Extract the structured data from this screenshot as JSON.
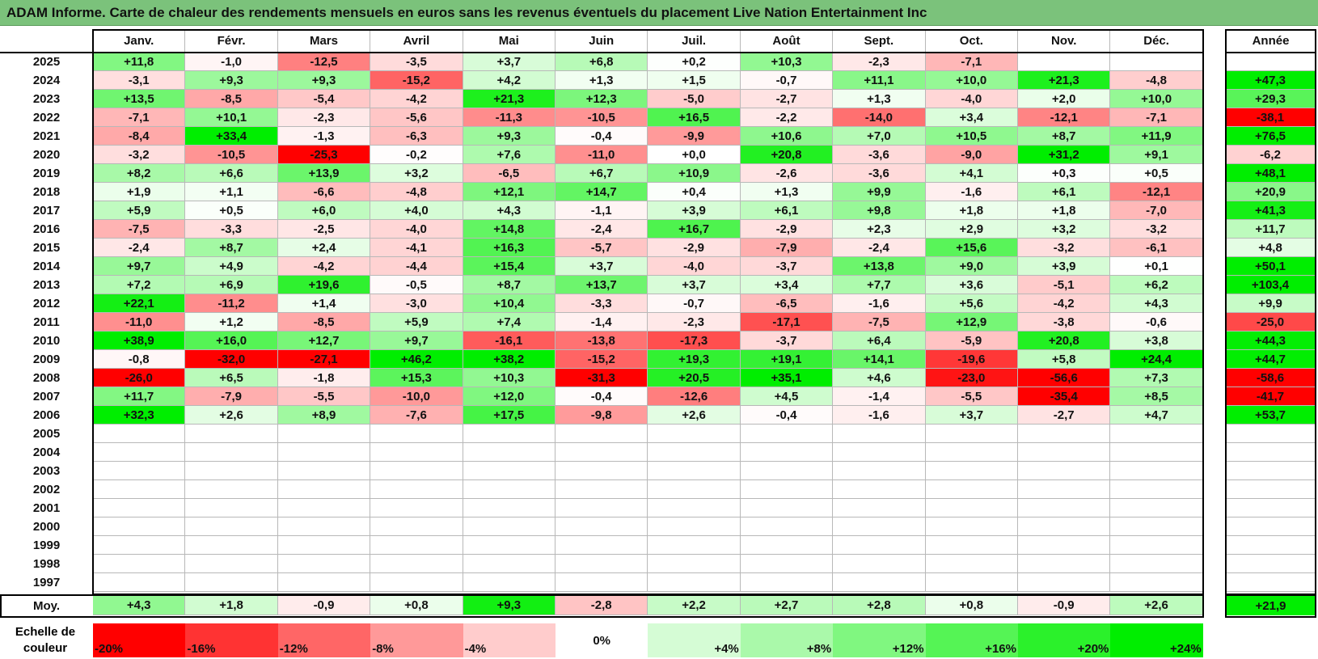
{
  "title": "ADAM Informe. Carte de chaleur des rendements mensuels en euros sans les revenus éventuels du placement Live Nation Entertainment Inc",
  "chart_data": {
    "type": "heatmap",
    "months": [
      "Janv.",
      "Févr.",
      "Mars",
      "Avril",
      "Mai",
      "Juin",
      "Juil.",
      "Août",
      "Sept.",
      "Oct.",
      "Nov.",
      "Déc."
    ],
    "annual_label": "Année",
    "avg_label": "Moy.",
    "rows": [
      {
        "year": "2025",
        "values": [
          "+11,8",
          "-1,0",
          "-12,5",
          "-3,5",
          "+3,7",
          "+6,8",
          "+0,2",
          "+10,3",
          "-2,3",
          "-7,1",
          "",
          ""
        ],
        "annual": ""
      },
      {
        "year": "2024",
        "values": [
          "-3,1",
          "+9,3",
          "+9,3",
          "-15,2",
          "+4,2",
          "+1,3",
          "+1,5",
          "-0,7",
          "+11,1",
          "+10,0",
          "+21,3",
          "-4,8"
        ],
        "annual": "+47,3"
      },
      {
        "year": "2023",
        "values": [
          "+13,5",
          "-8,5",
          "-5,4",
          "-4,2",
          "+21,3",
          "+12,3",
          "-5,0",
          "-2,7",
          "+1,3",
          "-4,0",
          "+2,0",
          "+10,0"
        ],
        "annual": "+29,3"
      },
      {
        "year": "2022",
        "values": [
          "-7,1",
          "+10,1",
          "-2,3",
          "-5,6",
          "-11,3",
          "-10,5",
          "+16,5",
          "-2,2",
          "-14,0",
          "+3,4",
          "-12,1",
          "-7,1"
        ],
        "annual": "-38,1"
      },
      {
        "year": "2021",
        "values": [
          "-8,4",
          "+33,4",
          "-1,3",
          "-6,3",
          "+9,3",
          "-0,4",
          "-9,9",
          "+10,6",
          "+7,0",
          "+10,5",
          "+8,7",
          "+11,9"
        ],
        "annual": "+76,5"
      },
      {
        "year": "2020",
        "values": [
          "-3,2",
          "-10,5",
          "-25,3",
          "-0,2",
          "+7,6",
          "-11,0",
          "+0,0",
          "+20,8",
          "-3,6",
          "-9,0",
          "+31,2",
          "+9,1"
        ],
        "annual": "-6,2"
      },
      {
        "year": "2019",
        "values": [
          "+8,2",
          "+6,6",
          "+13,9",
          "+3,2",
          "-6,5",
          "+6,7",
          "+10,9",
          "-2,6",
          "-3,6",
          "+4,1",
          "+0,3",
          "+0,5"
        ],
        "annual": "+48,1"
      },
      {
        "year": "2018",
        "values": [
          "+1,9",
          "+1,1",
          "-6,6",
          "-4,8",
          "+12,1",
          "+14,7",
          "+0,4",
          "+1,3",
          "+9,9",
          "-1,6",
          "+6,1",
          "-12,1"
        ],
        "annual": "+20,9"
      },
      {
        "year": "2017",
        "values": [
          "+5,9",
          "+0,5",
          "+6,0",
          "+4,0",
          "+4,3",
          "-1,1",
          "+3,9",
          "+6,1",
          "+9,8",
          "+1,8",
          "+1,8",
          "-7,0"
        ],
        "annual": "+41,3"
      },
      {
        "year": "2016",
        "values": [
          "-7,5",
          "-3,3",
          "-2,5",
          "-4,0",
          "+14,8",
          "-2,4",
          "+16,7",
          "-2,9",
          "+2,3",
          "+2,9",
          "+3,2",
          "-3,2"
        ],
        "annual": "+11,7"
      },
      {
        "year": "2015",
        "values": [
          "-2,4",
          "+8,7",
          "+2,4",
          "-4,1",
          "+16,3",
          "-5,7",
          "-2,9",
          "-7,9",
          "-2,4",
          "+15,6",
          "-3,2",
          "-6,1"
        ],
        "annual": "+4,8"
      },
      {
        "year": "2014",
        "values": [
          "+9,7",
          "+4,9",
          "-4,2",
          "-4,4",
          "+15,4",
          "+3,7",
          "-4,0",
          "-3,7",
          "+13,8",
          "+9,0",
          "+3,9",
          "+0,1"
        ],
        "annual": "+50,1"
      },
      {
        "year": "2013",
        "values": [
          "+7,2",
          "+6,9",
          "+19,6",
          "-0,5",
          "+8,7",
          "+13,7",
          "+3,7",
          "+3,4",
          "+7,7",
          "+3,6",
          "-5,1",
          "+6,2"
        ],
        "annual": "+103,4"
      },
      {
        "year": "2012",
        "values": [
          "+22,1",
          "-11,2",
          "+1,4",
          "-3,0",
          "+10,4",
          "-3,3",
          "-0,7",
          "-6,5",
          "-1,6",
          "+5,6",
          "-4,2",
          "+4,3"
        ],
        "annual": "+9,9"
      },
      {
        "year": "2011",
        "values": [
          "-11,0",
          "+1,2",
          "-8,5",
          "+5,9",
          "+7,4",
          "-1,4",
          "-2,3",
          "-17,1",
          "-7,5",
          "+12,9",
          "-3,8",
          "-0,6"
        ],
        "annual": "-25,0"
      },
      {
        "year": "2010",
        "values": [
          "+38,9",
          "+16,0",
          "+12,7",
          "+9,7",
          "-16,1",
          "-13,8",
          "-17,3",
          "-3,7",
          "+6,4",
          "-5,9",
          "+20,8",
          "+3,8"
        ],
        "annual": "+44,3"
      },
      {
        "year": "2009",
        "values": [
          "-0,8",
          "-32,0",
          "-27,1",
          "+46,2",
          "+38,2",
          "-15,2",
          "+19,3",
          "+19,1",
          "+14,1",
          "-19,6",
          "+5,8",
          "+24,4"
        ],
        "annual": "+44,7"
      },
      {
        "year": "2008",
        "values": [
          "-26,0",
          "+6,5",
          "-1,8",
          "+15,3",
          "+10,3",
          "-31,3",
          "+20,5",
          "+35,1",
          "+4,6",
          "-23,0",
          "-56,6",
          "+7,3"
        ],
        "annual": "-58,6"
      },
      {
        "year": "2007",
        "values": [
          "+11,7",
          "-7,9",
          "-5,5",
          "-10,0",
          "+12,0",
          "-0,4",
          "-12,6",
          "+4,5",
          "-1,4",
          "-5,5",
          "-35,4",
          "+8,5"
        ],
        "annual": "-41,7"
      },
      {
        "year": "2006",
        "values": [
          "+32,3",
          "+2,6",
          "+8,9",
          "-7,6",
          "+17,5",
          "-9,8",
          "+2,6",
          "-0,4",
          "-1,6",
          "+3,7",
          "-2,7",
          "+4,7"
        ],
        "annual": "+53,7"
      },
      {
        "year": "2005",
        "values": [
          "",
          "",
          "",
          "",
          "",
          "",
          "",
          "",
          "",
          "",
          "",
          ""
        ],
        "annual": ""
      },
      {
        "year": "2004",
        "values": [
          "",
          "",
          "",
          "",
          "",
          "",
          "",
          "",
          "",
          "",
          "",
          ""
        ],
        "annual": ""
      },
      {
        "year": "2003",
        "values": [
          "",
          "",
          "",
          "",
          "",
          "",
          "",
          "",
          "",
          "",
          "",
          ""
        ],
        "annual": ""
      },
      {
        "year": "2002",
        "values": [
          "",
          "",
          "",
          "",
          "",
          "",
          "",
          "",
          "",
          "",
          "",
          ""
        ],
        "annual": ""
      },
      {
        "year": "2001",
        "values": [
          "",
          "",
          "",
          "",
          "",
          "",
          "",
          "",
          "",
          "",
          "",
          ""
        ],
        "annual": ""
      },
      {
        "year": "2000",
        "values": [
          "",
          "",
          "",
          "",
          "",
          "",
          "",
          "",
          "",
          "",
          "",
          ""
        ],
        "annual": ""
      },
      {
        "year": "1999",
        "values": [
          "",
          "",
          "",
          "",
          "",
          "",
          "",
          "",
          "",
          "",
          "",
          ""
        ],
        "annual": ""
      },
      {
        "year": "1998",
        "values": [
          "",
          "",
          "",
          "",
          "",
          "",
          "",
          "",
          "",
          "",
          "",
          ""
        ],
        "annual": ""
      },
      {
        "year": "1997",
        "values": [
          "",
          "",
          "",
          "",
          "",
          "",
          "",
          "",
          "",
          "",
          "",
          ""
        ],
        "annual": ""
      }
    ],
    "average": {
      "values": [
        "+4,3",
        "+1,8",
        "-0,9",
        "+0,8",
        "+9,3",
        "-2,8",
        "+2,2",
        "+2,7",
        "+2,8",
        "+0,8",
        "-0,9",
        "+2,6"
      ],
      "annual": "+21,9"
    },
    "scale_title": "Echelle de couleur",
    "scale": [
      "-20%",
      "-16%",
      "-12%",
      "-8%",
      "-4%",
      "0%",
      "+4%",
      "+8%",
      "+12%",
      "+16%",
      "+20%",
      "+24%"
    ],
    "colors": {
      "negative_max": "#ff0000",
      "positive_max": "#00ee00",
      "neutral": "#ffffff",
      "title_bg": "#7bc27b"
    }
  }
}
